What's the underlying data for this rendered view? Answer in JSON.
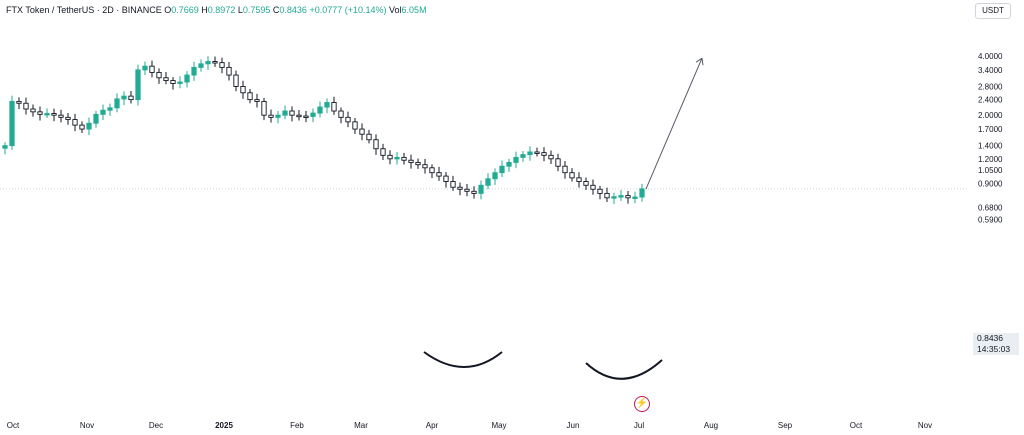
{
  "header": {
    "symbol": "FTX Token / TetherUS · 2D · BINANCE",
    "open_label": "O",
    "open": "0.7669",
    "high_label": "H",
    "high": "0.8972",
    "low_label": "L",
    "low": "0.7595",
    "close_label": "C",
    "close": "0.8436",
    "change": "+0.0777 (+10.14%)",
    "vol_label": "Vol",
    "volume": "6.05M"
  },
  "currency": "USDT",
  "price_badge": {
    "price": "0.8436",
    "countdown": "14:35:03"
  },
  "icons": {
    "flash": "lightning-icon"
  },
  "colors": {
    "up": "#22ab94",
    "down": "#131722",
    "line": "#131722",
    "grid_dot": "#cfd3dc"
  },
  "chart_data": {
    "type": "candlestick",
    "y_scale": "log",
    "ylim": [
      0.55,
      4.5
    ],
    "y_ticks": [
      4.0,
      3.4,
      2.8,
      2.4,
      2.0,
      1.7,
      1.4,
      1.2,
      1.05,
      0.9,
      0.68,
      0.59
    ],
    "y_tick_labels": [
      "4.0000",
      "3.4000",
      "2.8000",
      "2.4000",
      "2.0000",
      "1.7000",
      "1.4000",
      "1.2000",
      "1.0500",
      "0.9000",
      "0.6800",
      "0.5900"
    ],
    "x_ticks": [
      "Oct",
      "Nov",
      "Dec",
      "2025",
      "Feb",
      "Mar",
      "Apr",
      "May",
      "Jun",
      "Jul",
      "Aug",
      "Sep",
      "Oct",
      "Nov"
    ],
    "last_price": 0.8436,
    "closes": [
      1.4,
      2.35,
      2.3,
      2.15,
      2.08,
      2.02,
      2.04,
      2.0,
      1.95,
      1.9,
      1.78,
      1.7,
      1.82,
      2.02,
      2.12,
      2.18,
      2.42,
      2.5,
      2.4,
      3.4,
      3.55,
      3.3,
      3.1,
      3.0,
      2.9,
      2.95,
      3.2,
      3.5,
      3.65,
      3.75,
      3.7,
      3.5,
      3.2,
      2.8,
      2.6,
      2.4,
      2.35,
      2.0,
      1.95,
      2.0,
      2.1,
      2.0,
      1.98,
      1.97,
      2.05,
      2.2,
      2.32,
      2.1,
      1.95,
      1.85,
      1.7,
      1.6,
      1.5,
      1.35,
      1.25,
      1.2,
      1.22,
      1.18,
      1.15,
      1.12,
      1.08,
      1.02,
      0.98,
      0.92,
      0.86,
      0.84,
      0.82,
      0.8,
      0.88,
      0.95,
      1.02,
      1.1,
      1.15,
      1.22,
      1.26,
      1.3,
      1.29,
      1.25,
      1.2,
      1.1,
      1.02,
      0.96,
      0.92,
      0.88,
      0.84,
      0.8,
      0.76,
      0.77,
      0.78,
      0.76,
      0.7669,
      0.8436
    ],
    "annotations": [
      {
        "type": "arc",
        "label": "first bottom"
      },
      {
        "type": "arc",
        "label": "second bottom"
      },
      {
        "type": "arrow",
        "target_price": 3.9
      }
    ]
  }
}
